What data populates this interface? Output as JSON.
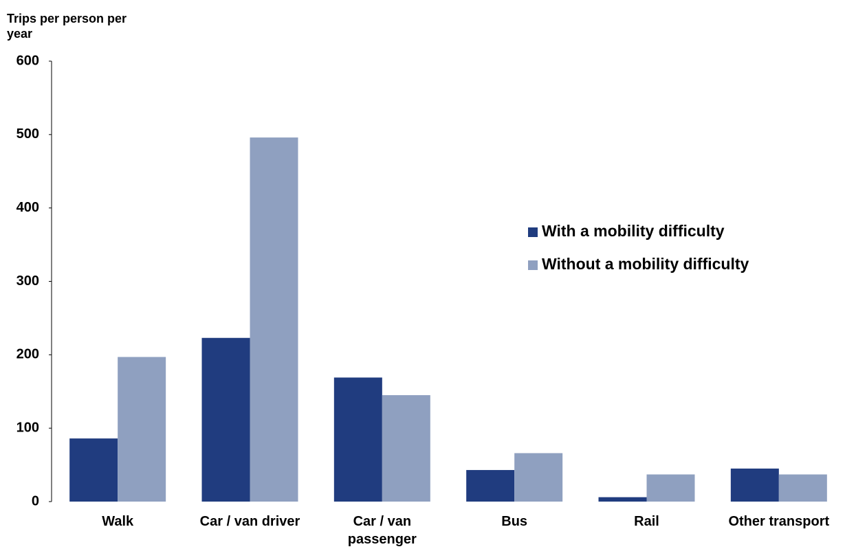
{
  "chart_data": {
    "type": "bar",
    "y_label": "Trips per person per year",
    "categories": [
      "Walk",
      "Car / van driver",
      "Car / van passenger",
      "Bus",
      "Rail",
      "Other transport"
    ],
    "series": [
      {
        "name": "With a mobility difficulty",
        "color": "#203c7f",
        "values": [
          86,
          223,
          169,
          43,
          6,
          45
        ]
      },
      {
        "name": "Without a mobility difficulty",
        "color": "#8fa0c0",
        "values": [
          197,
          496,
          145,
          66,
          37,
          37
        ]
      }
    ],
    "ylim": [
      0,
      600
    ],
    "yticks": [
      0,
      100,
      200,
      300,
      400,
      500,
      600
    ],
    "grid": false,
    "legend": "right"
  }
}
